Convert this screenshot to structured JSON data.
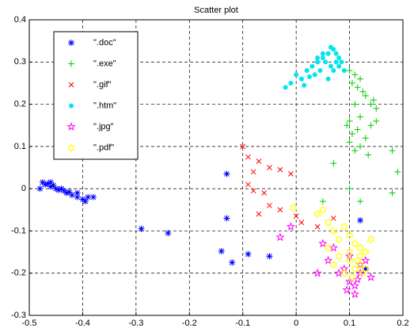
{
  "chart_data": {
    "type": "scatter",
    "title": "Scatter plot",
    "xlim": [
      -0.5,
      0.2
    ],
    "ylim": [
      -0.3,
      0.4
    ],
    "xticks": [
      -0.5,
      -0.4,
      -0.3,
      -0.2,
      -0.1,
      0,
      0.1,
      0.2
    ],
    "yticks": [
      -0.3,
      -0.2,
      -0.1,
      0,
      0.1,
      0.2,
      0.3,
      0.4
    ],
    "grid": true,
    "legend": "upper left",
    "series": [
      {
        "name": "\".doc\"",
        "color": "#0000ff",
        "marker": "asterisk",
        "x": [
          -0.48,
          -0.475,
          -0.47,
          -0.465,
          -0.46,
          -0.46,
          -0.455,
          -0.45,
          -0.445,
          -0.44,
          -0.435,
          -0.43,
          -0.425,
          -0.42,
          -0.41,
          -0.41,
          -0.4,
          -0.395,
          -0.39,
          -0.38,
          -0.29,
          -0.24,
          -0.13,
          -0.13,
          -0.14,
          -0.12,
          -0.09,
          -0.05,
          0.12,
          0.13
        ],
        "y": [
          0.0,
          0.015,
          0.01,
          0.012,
          0.005,
          0.015,
          0.008,
          0.0,
          -0.003,
          0.0,
          -0.005,
          -0.01,
          -0.008,
          -0.015,
          -0.02,
          -0.01,
          -0.025,
          -0.03,
          -0.02,
          -0.02,
          -0.095,
          -0.105,
          0.035,
          -0.07,
          -0.148,
          -0.175,
          -0.155,
          -0.16,
          -0.075,
          -0.19
        ]
      },
      {
        "name": "\".exe\"",
        "color": "#00cc00",
        "marker": "plus",
        "x": [
          0.1,
          0.11,
          0.12,
          0.105,
          0.115,
          0.125,
          0.13,
          0.14,
          0.145,
          0.15,
          0.11,
          0.12,
          0.1,
          0.105,
          0.115,
          0.13,
          0.14,
          0.12,
          0.11,
          0.1,
          0.095,
          0.135,
          0.15,
          0.18,
          0.19,
          0.18,
          0.1,
          0.05,
          0.12,
          0.07
        ],
        "y": [
          0.28,
          0.27,
          0.26,
          0.25,
          0.24,
          0.23,
          0.22,
          0.2,
          0.21,
          0.19,
          0.2,
          0.17,
          0.16,
          0.13,
          0.14,
          0.12,
          0.15,
          0.1,
          0.09,
          0.11,
          0.15,
          0.08,
          0.16,
          0.09,
          0.04,
          -0.01,
          0.0,
          -0.03,
          -0.03,
          0.06
        ]
      },
      {
        "name": "\".gif\"",
        "color": "#ff0000",
        "marker": "x",
        "x": [
          -0.1,
          -0.09,
          -0.08,
          -0.07,
          -0.05,
          -0.03,
          -0.01,
          -0.09,
          -0.08,
          -0.06,
          -0.05,
          -0.03,
          -0.07,
          0.0,
          0.01,
          0.04,
          0.07
        ],
        "y": [
          0.1,
          0.075,
          0.04,
          0.065,
          0.05,
          0.045,
          0.035,
          0.01,
          -0.005,
          -0.01,
          -0.04,
          -0.05,
          -0.06,
          -0.065,
          -0.08,
          -0.09,
          -0.07
        ]
      },
      {
        "name": "\".htm\"",
        "color": "#00e5ee",
        "marker": "dot",
        "x": [
          -0.02,
          -0.01,
          0.0,
          0.01,
          0.02,
          0.03,
          0.04,
          0.05,
          0.06,
          0.07,
          0.08,
          0.055,
          0.065,
          0.075,
          0.045,
          0.035,
          0.025,
          0.06,
          0.07,
          0.08,
          0.05,
          0.04,
          0.015,
          0.065,
          0.075,
          0.085,
          0.09
        ],
        "y": [
          0.24,
          0.25,
          0.27,
          0.26,
          0.28,
          0.29,
          0.3,
          0.31,
          0.32,
          0.33,
          0.31,
          0.3,
          0.29,
          0.3,
          0.28,
          0.27,
          0.265,
          0.26,
          0.28,
          0.29,
          0.32,
          0.31,
          0.245,
          0.335,
          0.32,
          0.3,
          0.28
        ]
      },
      {
        "name": "\".jpg\"",
        "color": "#ff00ff",
        "marker": "star",
        "x": [
          -0.03,
          -0.01,
          0.04,
          0.06,
          0.08,
          0.1,
          0.11,
          0.12,
          0.1,
          0.07,
          0.11,
          0.095,
          0.14,
          0.13,
          0.05,
          0.09,
          0.12,
          0.115
        ],
        "y": [
          -0.115,
          -0.09,
          -0.2,
          -0.17,
          -0.2,
          -0.22,
          -0.23,
          -0.18,
          -0.16,
          -0.14,
          -0.25,
          -0.24,
          -0.21,
          -0.17,
          -0.13,
          -0.19,
          -0.2,
          -0.215
        ]
      },
      {
        "name": "\".pdf\"",
        "color": "#ffff00",
        "marker": "hexagram",
        "x": [
          -0.005,
          0.04,
          0.05,
          0.06,
          0.07,
          0.08,
          0.09,
          0.1,
          0.11,
          0.12,
          0.13,
          0.14,
          0.06,
          0.08,
          0.1,
          0.12,
          0.11,
          0.09,
          0.13,
          0.12,
          0.1,
          0.115,
          0.125,
          0.105,
          0.07
        ],
        "y": [
          -0.045,
          -0.06,
          -0.05,
          -0.08,
          -0.1,
          -0.12,
          -0.09,
          -0.11,
          -0.13,
          -0.14,
          -0.15,
          -0.12,
          -0.14,
          -0.16,
          -0.17,
          -0.18,
          -0.19,
          -0.2,
          -0.19,
          -0.16,
          -0.15,
          -0.17,
          -0.2,
          -0.21,
          -0.18
        ]
      }
    ]
  }
}
